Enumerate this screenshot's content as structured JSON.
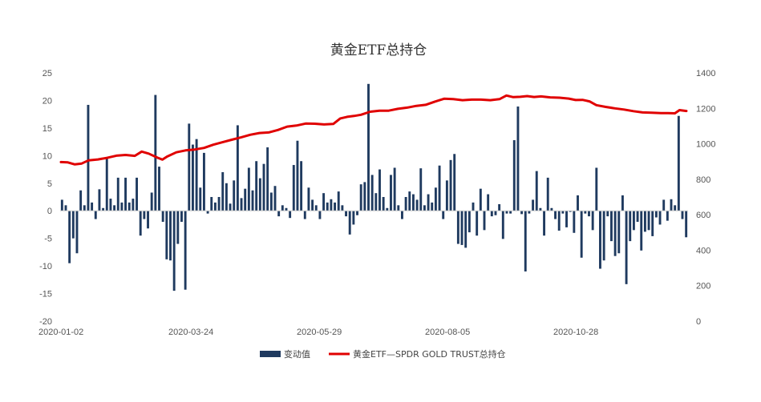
{
  "chart_data": {
    "type": "bar+line",
    "title": "黄金ETF总持仓",
    "x_tick_labels": [
      "2020-01-02",
      "2020-03-24",
      "2020-05-29",
      "2020-08-05",
      "2020-10-28"
    ],
    "y_left": {
      "min": -20,
      "max": 25,
      "step": 5,
      "ticks": [
        -20,
        -15,
        -10,
        -5,
        0,
        5,
        10,
        15,
        20,
        25
      ]
    },
    "y_right": {
      "min": 0,
      "max": 1400,
      "step": 200,
      "ticks": [
        0,
        200,
        400,
        600,
        800,
        1000,
        1200,
        1400
      ]
    },
    "grid": false,
    "legend_position": "bottom",
    "series": [
      {
        "name": "变动值",
        "type": "bar",
        "axis": "left",
        "color": "#1f3a5f",
        "values": [
          2,
          1,
          -9.5,
          -5,
          -7.7,
          3.7,
          1,
          19.2,
          1.5,
          -1.5,
          3.9,
          0.5,
          9.5,
          2.2,
          1,
          6,
          1.5,
          6,
          1.5,
          2.2,
          6,
          -4.5,
          -1.5,
          -3.2,
          3.3,
          21,
          8,
          -2,
          -8.8,
          -9,
          -14.5,
          -6,
          -2,
          -14.3,
          15.8,
          12,
          13,
          4.2,
          10.5,
          -0.5,
          2.5,
          1.5,
          2.5,
          7,
          5,
          1.3,
          5.5,
          15.5,
          2.3,
          4,
          7.8,
          3.7,
          9,
          5.9,
          8.5,
          11.5,
          3.3,
          4.5,
          -1,
          1,
          0.5,
          -1.3,
          8.3,
          12.7,
          9,
          -1.5,
          4.2,
          2,
          1,
          -1.5,
          3.2,
          1.5,
          2.1,
          1.5,
          3.5,
          1,
          -1,
          -4.3,
          -2.5,
          -0.8,
          4.8,
          5.2,
          23,
          6.5,
          3.2,
          7.5,
          2.5,
          0.5,
          6.5,
          7.8,
          1,
          -1.5,
          2.5,
          3.5,
          3,
          2,
          7.7,
          1,
          3,
          1.5,
          4.2,
          8.2,
          -1.5,
          5.5,
          9.2,
          10.3,
          -6,
          -6.2,
          -6.7,
          -3.9,
          1.5,
          -4.5,
          4,
          -3.5,
          3,
          -1,
          -0.8,
          1.2,
          -5.1,
          -0.5,
          -0.5,
          12.8,
          18.9,
          -0.6,
          -11,
          -0.5,
          2,
          7.2,
          0.5,
          -4.5,
          6,
          0.5,
          -1.5,
          -3.6,
          -0.5,
          -3,
          -0.2,
          -4,
          2.8,
          -8.5,
          -0.5,
          -1,
          -3.5,
          7.8,
          -10.5,
          -9,
          -1,
          -5.5,
          -8.2,
          -7.7,
          2.8,
          -13.3,
          -5.5,
          -3.5,
          -2,
          -7.2,
          -3.8,
          -3.5,
          -4.6,
          -1.2,
          -2.5,
          2,
          -1.8,
          2.1,
          1,
          17.2,
          -1.5,
          -4.8
        ]
      },
      {
        "name": "黄金ETF—SPDR GOLD TRUST总持仓",
        "type": "line",
        "axis": "right",
        "color": "#e00000",
        "points": [
          [
            0,
            897
          ],
          [
            3,
            895
          ],
          [
            6,
            884
          ],
          [
            9,
            889
          ],
          [
            12,
            907
          ],
          [
            16,
            912
          ],
          [
            20,
            921
          ],
          [
            24,
            933
          ],
          [
            28,
            937
          ],
          [
            32,
            932
          ],
          [
            35,
            956
          ],
          [
            38,
            945
          ],
          [
            42,
            921
          ],
          [
            44,
            911
          ],
          [
            46,
            928
          ],
          [
            50,
            952
          ],
          [
            54,
            963
          ],
          [
            58,
            968
          ],
          [
            62,
            977
          ],
          [
            66,
            995
          ],
          [
            70,
            1009
          ],
          [
            74,
            1023
          ],
          [
            78,
            1036
          ],
          [
            82,
            1051
          ],
          [
            86,
            1061
          ],
          [
            90,
            1064
          ],
          [
            94,
            1078
          ],
          [
            98,
            1097
          ],
          [
            102,
            1103
          ],
          [
            106,
            1114
          ],
          [
            110,
            1113
          ],
          [
            114,
            1109
          ],
          [
            118,
            1112
          ],
          [
            121,
            1143
          ],
          [
            124,
            1152
          ],
          [
            127,
            1157
          ],
          [
            130,
            1164
          ],
          [
            134,
            1181
          ],
          [
            138,
            1187
          ],
          [
            142,
            1187
          ],
          [
            146,
            1197
          ],
          [
            150,
            1204
          ],
          [
            154,
            1214
          ],
          [
            158,
            1220
          ],
          [
            162,
            1238
          ],
          [
            166,
            1254
          ],
          [
            170,
            1252
          ],
          [
            174,
            1246
          ],
          [
            178,
            1249
          ],
          [
            182,
            1249
          ],
          [
            186,
            1246
          ],
          [
            190,
            1252
          ],
          [
            193,
            1272
          ],
          [
            196,
            1263
          ],
          [
            199,
            1265
          ],
          [
            202,
            1269
          ],
          [
            205,
            1264
          ],
          [
            208,
            1267
          ],
          [
            212,
            1262
          ],
          [
            216,
            1260
          ],
          [
            220,
            1255
          ],
          [
            223,
            1247
          ],
          [
            226,
            1248
          ],
          [
            229,
            1239
          ],
          [
            232,
            1218
          ],
          [
            236,
            1208
          ],
          [
            240,
            1200
          ],
          [
            244,
            1193
          ],
          [
            248,
            1184
          ],
          [
            252,
            1177
          ],
          [
            256,
            1175
          ],
          [
            260,
            1173
          ],
          [
            263,
            1173
          ],
          [
            266,
            1172
          ],
          [
            268,
            1190
          ],
          [
            271,
            1185
          ]
        ],
        "x_max": 271
      }
    ]
  }
}
